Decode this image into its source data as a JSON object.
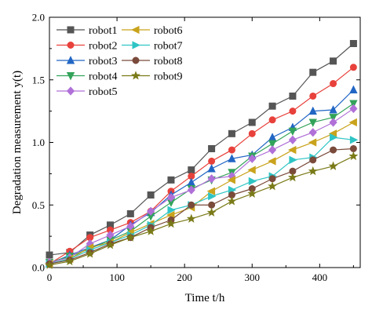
{
  "chart_data": {
    "type": "line",
    "title": "",
    "xlabel": "Time t/h",
    "ylabel": "Degradation measurement y(t)",
    "xlim": [
      0,
      460
    ],
    "ylim": [
      0,
      2.0
    ],
    "xticks": [
      "0",
      "100",
      "200",
      "300",
      "400"
    ],
    "yticks": [
      "0.0",
      "0.5",
      "1.0",
      "1.5",
      "2.0"
    ],
    "grid": false,
    "legend_position": "top-left",
    "x": [
      0,
      30,
      60,
      90,
      120,
      150,
      180,
      210,
      240,
      270,
      300,
      330,
      360,
      390,
      420,
      450
    ],
    "series": [
      {
        "name": "robot1",
        "color": "#555555",
        "marker": "square",
        "values": [
          0.1,
          0.12,
          0.26,
          0.34,
          0.43,
          0.58,
          0.7,
          0.78,
          0.95,
          1.07,
          1.16,
          1.29,
          1.37,
          1.56,
          1.65,
          1.79
        ]
      },
      {
        "name": "robot2",
        "color": "#e8413b",
        "marker": "circle",
        "values": [
          0.03,
          0.13,
          0.24,
          0.3,
          0.36,
          0.45,
          0.61,
          0.73,
          0.85,
          0.94,
          1.07,
          1.18,
          1.25,
          1.37,
          1.47,
          1.6
        ]
      },
      {
        "name": "robot3",
        "color": "#2166c4",
        "marker": "triangle-up",
        "values": [
          0.03,
          0.1,
          0.16,
          0.22,
          0.34,
          0.44,
          0.58,
          0.68,
          0.79,
          0.87,
          0.9,
          1.04,
          1.12,
          1.25,
          1.26,
          1.42
        ]
      },
      {
        "name": "robot4",
        "color": "#33a35a",
        "marker": "triangle-down",
        "values": [
          0.04,
          0.09,
          0.15,
          0.22,
          0.29,
          0.41,
          0.52,
          0.63,
          0.7,
          0.76,
          0.89,
          0.99,
          1.09,
          1.16,
          1.2,
          1.31
        ]
      },
      {
        "name": "robot5",
        "color": "#b070d8",
        "marker": "diamond",
        "values": [
          0.04,
          0.08,
          0.19,
          0.26,
          0.33,
          0.45,
          0.56,
          0.62,
          0.71,
          0.73,
          0.87,
          0.94,
          1.02,
          1.08,
          1.16,
          1.27
        ]
      },
      {
        "name": "robot6",
        "color": "#c9a31c",
        "marker": "triangle-left",
        "values": [
          0.03,
          0.07,
          0.16,
          0.2,
          0.28,
          0.35,
          0.42,
          0.48,
          0.61,
          0.7,
          0.78,
          0.85,
          0.94,
          1.0,
          1.07,
          1.16
        ]
      },
      {
        "name": "robot7",
        "color": "#2fc4c4",
        "marker": "triangle-right",
        "values": [
          0.03,
          0.07,
          0.14,
          0.2,
          0.26,
          0.34,
          0.46,
          0.5,
          0.57,
          0.62,
          0.69,
          0.73,
          0.86,
          0.88,
          1.04,
          1.02
        ]
      },
      {
        "name": "robot8",
        "color": "#7a4a3a",
        "marker": "circle",
        "values": [
          0.03,
          0.06,
          0.12,
          0.19,
          0.24,
          0.32,
          0.38,
          0.5,
          0.5,
          0.58,
          0.63,
          0.71,
          0.77,
          0.86,
          0.94,
          0.95
        ]
      },
      {
        "name": "robot9",
        "color": "#7a7a18",
        "marker": "star",
        "values": [
          0.02,
          0.05,
          0.11,
          0.18,
          0.24,
          0.29,
          0.35,
          0.39,
          0.44,
          0.53,
          0.59,
          0.65,
          0.72,
          0.77,
          0.81,
          0.89
        ]
      }
    ]
  }
}
